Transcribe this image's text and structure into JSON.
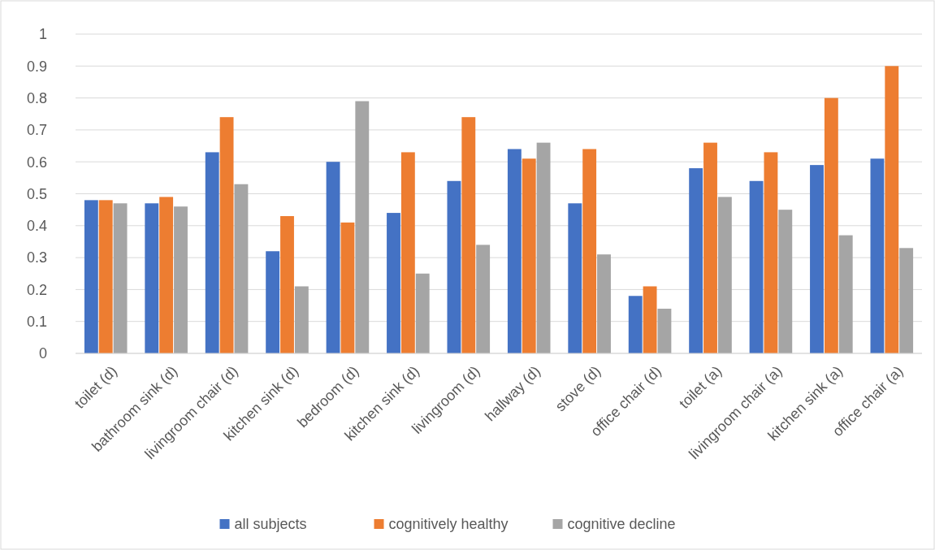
{
  "chart_data": {
    "type": "bar",
    "categories": [
      "toilet (d)",
      "bathroom sink (d)",
      "livingroom chair (d)",
      "kitchen sink (d)",
      "bedroom (d)",
      "kitchen sink (d)",
      "livingroom (d)",
      "hallway (d)",
      "stove (d)",
      "office chair (d)",
      "toilet (a)",
      "livingroom chair (a)",
      "kitchen sink (a)",
      "office chair (a)"
    ],
    "series": [
      {
        "name": "all subjects",
        "color": "#4472c4",
        "values": [
          0.48,
          0.47,
          0.63,
          0.32,
          0.6,
          0.44,
          0.54,
          0.64,
          0.47,
          0.18,
          0.58,
          0.54,
          0.59,
          0.61
        ]
      },
      {
        "name": "cognitively healthy",
        "color": "#ed7d31",
        "values": [
          0.48,
          0.49,
          0.74,
          0.43,
          0.41,
          0.63,
          0.74,
          0.61,
          0.64,
          0.21,
          0.66,
          0.63,
          0.8,
          0.9
        ]
      },
      {
        "name": "cognitive decline",
        "color": "#a5a5a5",
        "values": [
          0.47,
          0.46,
          0.53,
          0.21,
          0.79,
          0.25,
          0.34,
          0.66,
          0.31,
          0.14,
          0.49,
          0.45,
          0.37,
          0.33
        ]
      }
    ],
    "ylim": [
      0,
      1
    ],
    "yticks": [
      0,
      0.1,
      0.2,
      0.3,
      0.4,
      0.5,
      0.6,
      0.7,
      0.8,
      0.9,
      1
    ],
    "grid": "y",
    "legend": "bottom"
  }
}
